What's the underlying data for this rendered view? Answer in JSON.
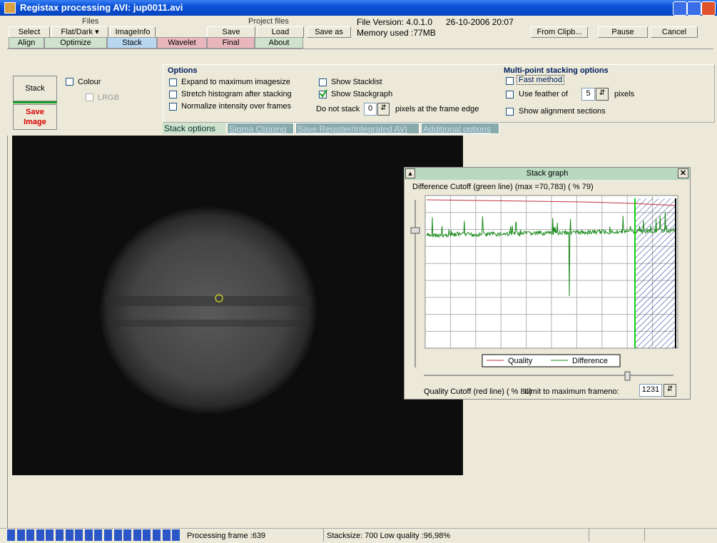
{
  "window": {
    "title": "Registax processing AVI: jup0011.avi"
  },
  "toolbar": {
    "files_label": "Files",
    "select": "Select",
    "flat_dark": "Flat/Dark ▾",
    "image_info": "ImageInfo",
    "project_files_label": "Project files",
    "save": "Save",
    "load": "Load",
    "save_as": "Save as",
    "file_version": "File Version: 4.0.1.0",
    "date": "26-10-2006 20:07",
    "memory": "Memory used :77MB",
    "from_clipboard": "From Clipb...",
    "pause": "Pause",
    "cancel": "Cancel"
  },
  "tabs": [
    "Align",
    "Optimize",
    "Stack",
    "Wavelet",
    "Final",
    "About"
  ],
  "stack_panel": {
    "stack_button": "Stack",
    "save_image": "Save Image",
    "colour": {
      "label": "Colour",
      "checked": false
    },
    "lrgb": {
      "label": "LRGB",
      "checked": false
    }
  },
  "options": {
    "heading": "Options",
    "items": [
      {
        "label": "Expand to maximum imagesize",
        "checked": false
      },
      {
        "label": "Stretch histogram after stacking",
        "checked": false
      },
      {
        "label": "Normalize intensity over frames",
        "checked": false
      },
      {
        "label": "Show Stacklist",
        "checked": false
      },
      {
        "label": "Show Stackgraph",
        "checked": true
      }
    ],
    "do_not_stack": "Do not stack",
    "edge_value": 0,
    "edge_suffix": "pixels at the frame edge"
  },
  "multipoint": {
    "heading": "Multi-point stacking options",
    "fast_method": {
      "label": "Fast method",
      "checked": false
    },
    "feather": {
      "label": "Use feather of",
      "checked": false
    },
    "feather_value": 5,
    "feather_unit": "pixels",
    "show_sections": {
      "label": "Show alignment sections",
      "checked": false
    }
  },
  "subtabs": [
    "Stack  options",
    "Sigma Clipping",
    "Save Register/Integrated AVI",
    "Additional options"
  ],
  "stack_graph": {
    "title": "Stack graph",
    "caption": "Difference Cutoff (green line) (max =70,783) ( % 79)",
    "legend": [
      "Quality",
      "Difference"
    ],
    "quality_cutoff": "Quality Cutoff (red line) ( % 84)",
    "limit_label": "Limit to maximum frameno:",
    "limit_value": 1231
  },
  "status": {
    "frame": "Processing frame :639",
    "stacksize": "Stacksize: 700 Low quality :96,98%"
  }
}
